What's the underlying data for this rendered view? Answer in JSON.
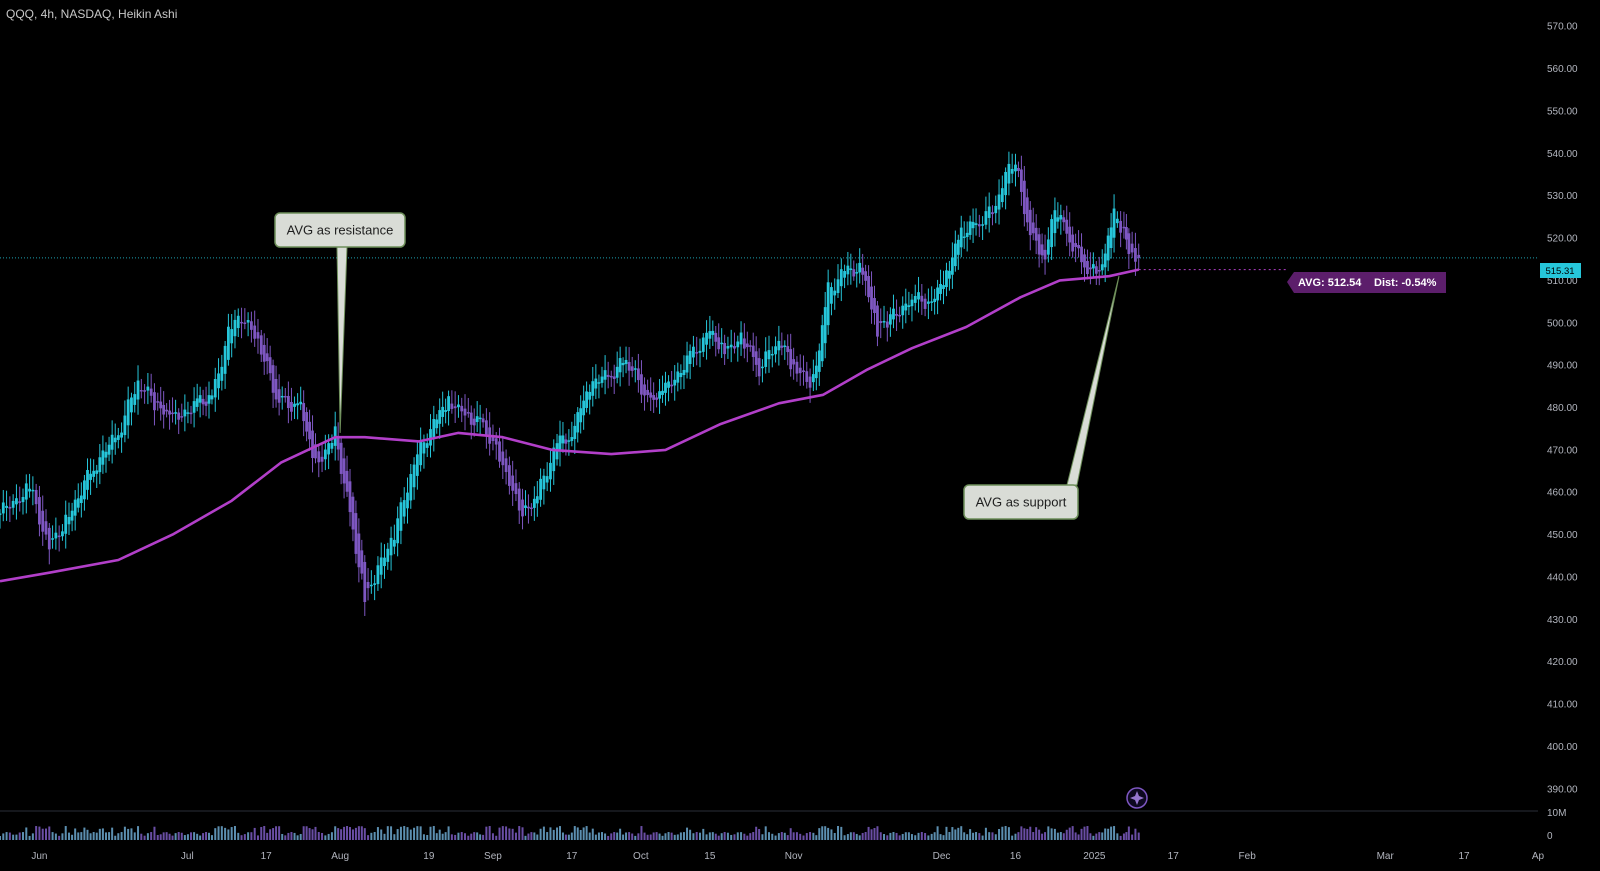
{
  "header": {
    "symbol_title": "QQQ, 4h, NASDAQ, Heikin Ashi"
  },
  "price_axis": {
    "ticks": [
      "570.00",
      "560.00",
      "550.00",
      "540.00",
      "530.00",
      "520.00",
      "510.00",
      "500.00",
      "490.00",
      "480.00",
      "470.00",
      "460.00",
      "450.00",
      "440.00",
      "430.00",
      "420.00",
      "410.00",
      "400.00",
      "390.00"
    ],
    "current_price_label": "515.31"
  },
  "volume_axis": {
    "ticks": [
      "10M",
      "0"
    ]
  },
  "time_axis": {
    "ticks": [
      "Jun",
      "Jul",
      "17",
      "Aug",
      "19",
      "Sep",
      "17",
      "Oct",
      "15",
      "Nov",
      "Dec",
      "16",
      "2025",
      "17",
      "Feb",
      "Mar",
      "17",
      "Ap"
    ]
  },
  "avg_tag": {
    "avg_label": "AVG: 512.54",
    "dist_label": "Dist: -0.54%"
  },
  "annotations": {
    "resistance": "AVG as resistance",
    "support": "AVG as support"
  },
  "colors": {
    "background": "#000000",
    "bull_candle": "#26c6da",
    "bear_candle": "#7e57c2",
    "avg_line": "#b23fc9",
    "price_line": "#26c6da",
    "avg_tag_bg": "#5c1e6b",
    "callout_bg": "#d9dcd6",
    "callout_border": "#6e8f5a"
  },
  "chart_data": {
    "type": "candlestick",
    "symbol": "QQQ",
    "interval": "4h",
    "exchange": "NASDAQ",
    "style": "Heikin Ashi",
    "x_range": [
      "2024-05-24",
      "2025-04-01"
    ],
    "y_range": [
      385,
      575
    ],
    "last_price": 515.31,
    "price_series": [
      {
        "date": "2024-05-24",
        "close": 455
      },
      {
        "date": "2024-05-30",
        "close": 461
      },
      {
        "date": "2024-06-03",
        "close": 447
      },
      {
        "date": "2024-06-07",
        "close": 455
      },
      {
        "date": "2024-06-12",
        "close": 466
      },
      {
        "date": "2024-06-17",
        "close": 474
      },
      {
        "date": "2024-06-21",
        "close": 486
      },
      {
        "date": "2024-06-25",
        "close": 480
      },
      {
        "date": "2024-06-28",
        "close": 477
      },
      {
        "date": "2024-07-03",
        "close": 481
      },
      {
        "date": "2024-07-06",
        "close": 483
      },
      {
        "date": "2024-07-10",
        "close": 500
      },
      {
        "date": "2024-07-12",
        "close": 502
      },
      {
        "date": "2024-07-16",
        "close": 494
      },
      {
        "date": "2024-07-19",
        "close": 482
      },
      {
        "date": "2024-07-24",
        "close": 480
      },
      {
        "date": "2024-07-27",
        "close": 466
      },
      {
        "date": "2024-07-31",
        "close": 474
      },
      {
        "date": "2024-08-03",
        "close": 455
      },
      {
        "date": "2024-08-06",
        "close": 435
      },
      {
        "date": "2024-08-08",
        "close": 440
      },
      {
        "date": "2024-08-12",
        "close": 450
      },
      {
        "date": "2024-08-16",
        "close": 467
      },
      {
        "date": "2024-08-20",
        "close": 477
      },
      {
        "date": "2024-08-23",
        "close": 482
      },
      {
        "date": "2024-08-27",
        "close": 478
      },
      {
        "date": "2024-08-30",
        "close": 476
      },
      {
        "date": "2024-09-03",
        "close": 466
      },
      {
        "date": "2024-09-07",
        "close": 454
      },
      {
        "date": "2024-09-10",
        "close": 459
      },
      {
        "date": "2024-09-14",
        "close": 472
      },
      {
        "date": "2024-09-17",
        "close": 474
      },
      {
        "date": "2024-09-20",
        "close": 485
      },
      {
        "date": "2024-09-25",
        "close": 488
      },
      {
        "date": "2024-09-28",
        "close": 491
      },
      {
        "date": "2024-10-03",
        "close": 481
      },
      {
        "date": "2024-10-06",
        "close": 484
      },
      {
        "date": "2024-10-11",
        "close": 492
      },
      {
        "date": "2024-10-15",
        "close": 498
      },
      {
        "date": "2024-10-18",
        "close": 494
      },
      {
        "date": "2024-10-22",
        "close": 496
      },
      {
        "date": "2024-10-25",
        "close": 489
      },
      {
        "date": "2024-10-29",
        "close": 496
      },
      {
        "date": "2024-11-01",
        "close": 489
      },
      {
        "date": "2024-11-05",
        "close": 486
      },
      {
        "date": "2024-11-08",
        "close": 508
      },
      {
        "date": "2024-11-12",
        "close": 513
      },
      {
        "date": "2024-11-15",
        "close": 512
      },
      {
        "date": "2024-11-18",
        "close": 498
      },
      {
        "date": "2024-11-20",
        "close": 500
      },
      {
        "date": "2024-11-25",
        "close": 506
      },
      {
        "date": "2024-11-29",
        "close": 505
      },
      {
        "date": "2024-12-02",
        "close": 512
      },
      {
        "date": "2024-12-05",
        "close": 522
      },
      {
        "date": "2024-12-08",
        "close": 523
      },
      {
        "date": "2024-12-12",
        "close": 527
      },
      {
        "date": "2024-12-14",
        "close": 535
      },
      {
        "date": "2024-12-16",
        "close": 537
      },
      {
        "date": "2024-12-19",
        "close": 521
      },
      {
        "date": "2024-12-22",
        "close": 516
      },
      {
        "date": "2024-12-24",
        "close": 528
      },
      {
        "date": "2024-12-27",
        "close": 520
      },
      {
        "date": "2024-12-30",
        "close": 513
      },
      {
        "date": "2025-01-02",
        "close": 511
      },
      {
        "date": "2025-01-05",
        "close": 525
      },
      {
        "date": "2025-01-07",
        "close": 521
      },
      {
        "date": "2025-01-08",
        "close": 516
      },
      {
        "date": "2025-01-10",
        "close": 515.31
      }
    ],
    "avg_series": [
      {
        "date": "2024-05-24",
        "value": 439
      },
      {
        "date": "2024-06-03",
        "value": 441
      },
      {
        "date": "2024-06-17",
        "value": 444
      },
      {
        "date": "2024-06-28",
        "value": 450
      },
      {
        "date": "2024-07-10",
        "value": 458
      },
      {
        "date": "2024-07-20",
        "value": 467
      },
      {
        "date": "2024-07-31",
        "value": 473
      },
      {
        "date": "2024-08-06",
        "value": 473
      },
      {
        "date": "2024-08-17",
        "value": 472
      },
      {
        "date": "2024-08-25",
        "value": 474
      },
      {
        "date": "2024-09-03",
        "value": 473
      },
      {
        "date": "2024-09-13",
        "value": 470
      },
      {
        "date": "2024-09-25",
        "value": 469
      },
      {
        "date": "2024-10-06",
        "value": 470
      },
      {
        "date": "2024-10-17",
        "value": 476
      },
      {
        "date": "2024-10-29",
        "value": 481
      },
      {
        "date": "2024-11-07",
        "value": 483
      },
      {
        "date": "2024-11-16",
        "value": 489
      },
      {
        "date": "2024-11-25",
        "value": 494
      },
      {
        "date": "2024-12-06",
        "value": 499
      },
      {
        "date": "2024-12-17",
        "value": 506
      },
      {
        "date": "2024-12-25",
        "value": 510
      },
      {
        "date": "2025-01-04",
        "value": 511
      },
      {
        "date": "2025-01-10",
        "value": 512.54
      }
    ],
    "avg_value": 512.54,
    "avg_distance_pct": -0.54
  }
}
